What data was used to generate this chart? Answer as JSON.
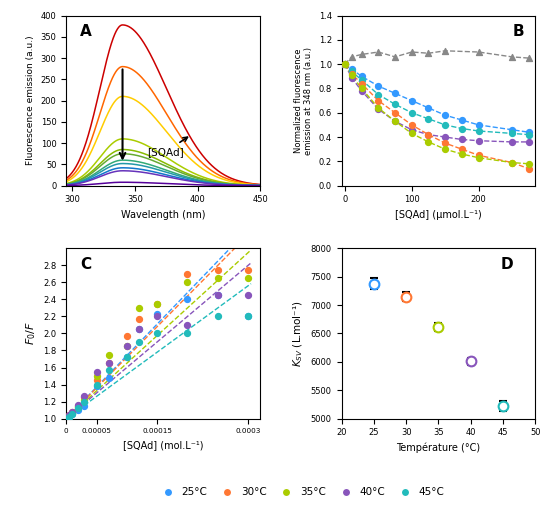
{
  "panel_A": {
    "label": "A",
    "xlabel": "Wavelength (nm)",
    "ylabel": "Fluorescence emission (a.u.)",
    "xlim": [
      295,
      450
    ],
    "ylim": [
      0,
      400
    ],
    "yticks": [
      0,
      50,
      100,
      150,
      200,
      250,
      300,
      350,
      400
    ],
    "xticks": [
      300,
      350,
      400,
      450
    ],
    "spectra_colors": [
      "#cc0000",
      "#ff6600",
      "#ffcc00",
      "#aacc00",
      "#88bb00",
      "#66aa33",
      "#33aa77",
      "#2299aa",
      "#1177cc",
      "#6633bb",
      "#550099"
    ],
    "peak_wavelength": 340,
    "peak_values": [
      378,
      280,
      210,
      110,
      85,
      75,
      60,
      52,
      42,
      35,
      8
    ],
    "annotation_text": "[SQAd]"
  },
  "panel_B": {
    "label": "B",
    "xlabel": "[SQAd] (μmol.L⁻¹)",
    "ylabel": "Normalized fluorescence\nemission at 348 nm (a.u.)",
    "xlim": [
      -5,
      285
    ],
    "ylim": [
      0,
      1.4
    ],
    "yticks": [
      0,
      0.2,
      0.4,
      0.6,
      0.8,
      1.0,
      1.2,
      1.4
    ],
    "xticks": [
      0,
      100,
      200
    ],
    "series": {
      "25C": {
        "color": "#3399ff",
        "x": [
          0,
          10,
          25,
          50,
          75,
          100,
          125,
          150,
          175,
          200,
          250,
          275
        ],
        "y": [
          1.0,
          0.96,
          0.9,
          0.82,
          0.76,
          0.7,
          0.64,
          0.58,
          0.54,
          0.5,
          0.46,
          0.44
        ]
      },
      "30C": {
        "color": "#ff7733",
        "x": [
          0,
          10,
          25,
          50,
          75,
          100,
          125,
          150,
          175,
          200,
          250,
          275
        ],
        "y": [
          1.0,
          0.92,
          0.84,
          0.7,
          0.6,
          0.5,
          0.42,
          0.35,
          0.3,
          0.25,
          0.19,
          0.14
        ]
      },
      "35C": {
        "color": "#aacc00",
        "x": [
          0,
          10,
          25,
          50,
          75,
          100,
          125,
          150,
          175,
          200,
          250,
          275
        ],
        "y": [
          1.0,
          0.91,
          0.8,
          0.64,
          0.53,
          0.43,
          0.36,
          0.3,
          0.26,
          0.23,
          0.19,
          0.18
        ]
      },
      "40C": {
        "color": "#8855bb",
        "x": [
          0,
          10,
          25,
          50,
          75,
          100,
          125,
          150,
          175,
          200,
          250,
          275
        ],
        "y": [
          1.0,
          0.89,
          0.78,
          0.63,
          0.53,
          0.46,
          0.42,
          0.4,
          0.38,
          0.37,
          0.36,
          0.36
        ]
      },
      "45C": {
        "color": "#22bbbb",
        "x": [
          0,
          10,
          25,
          50,
          75,
          100,
          125,
          150,
          175,
          200,
          250,
          275
        ],
        "y": [
          1.0,
          0.94,
          0.87,
          0.75,
          0.67,
          0.6,
          0.55,
          0.5,
          0.47,
          0.45,
          0.43,
          0.42
        ]
      },
      "control": {
        "color": "#888888",
        "x": [
          0,
          10,
          25,
          50,
          75,
          100,
          125,
          150,
          200,
          250,
          275
        ],
        "y": [
          1.0,
          1.06,
          1.08,
          1.1,
          1.06,
          1.1,
          1.09,
          1.11,
          1.1,
          1.06,
          1.05
        ]
      }
    }
  },
  "panel_C": {
    "label": "C",
    "xlabel": "[SQAd] (mol.L⁻¹)",
    "ylabel": "$F_0/F$",
    "xlim": [
      0,
      0.00032
    ],
    "ylim": [
      1.0,
      3.0
    ],
    "yticks": [
      1.0,
      1.2,
      1.4,
      1.6,
      1.8,
      2.0,
      2.2,
      2.4,
      2.6,
      2.8
    ],
    "xtick_vals": [
      0,
      5e-05,
      0.00015,
      0.0003
    ],
    "xtick_labels": [
      "0",
      "0.00005",
      "0.00015",
      "0.0003"
    ],
    "series": {
      "25C": {
        "color": "#3399ff",
        "Ksv": 7400,
        "scatter_x": [
          0,
          5e-06,
          1e-05,
          2e-05,
          3e-05,
          5e-05,
          7e-05,
          0.0001,
          0.00012,
          0.00015,
          0.0002,
          0.00025,
          0.0003
        ],
        "scatter_y": [
          1.0,
          1.02,
          1.05,
          1.1,
          1.15,
          1.38,
          1.48,
          1.72,
          2.05,
          2.23,
          2.4,
          2.45,
          2.2
        ]
      },
      "30C": {
        "color": "#ff7733",
        "Ksv": 7200,
        "scatter_x": [
          0,
          5e-06,
          1e-05,
          2e-05,
          3e-05,
          5e-05,
          7e-05,
          0.0001,
          0.00012,
          0.00015,
          0.0002,
          0.00025,
          0.0003
        ],
        "scatter_y": [
          1.0,
          1.04,
          1.08,
          1.15,
          1.25,
          1.45,
          1.65,
          1.97,
          2.17,
          2.35,
          2.7,
          2.75,
          2.75
        ]
      },
      "35C": {
        "color": "#aacc00",
        "Ksv": 6500,
        "scatter_x": [
          0,
          5e-06,
          1e-05,
          2e-05,
          3e-05,
          5e-05,
          7e-05,
          0.0001,
          0.00012,
          0.00015,
          0.0002,
          0.00025,
          0.0003
        ],
        "scatter_y": [
          1.0,
          1.03,
          1.07,
          1.14,
          1.22,
          1.5,
          1.75,
          1.85,
          2.3,
          2.35,
          2.6,
          2.65,
          2.65
        ]
      },
      "40C": {
        "color": "#8855bb",
        "Ksv": 6000,
        "scatter_x": [
          0,
          5e-06,
          1e-05,
          2e-05,
          3e-05,
          5e-05,
          7e-05,
          0.0001,
          0.00012,
          0.00015,
          0.0002,
          0.00025,
          0.0003
        ],
        "scatter_y": [
          1.0,
          1.04,
          1.08,
          1.16,
          1.26,
          1.55,
          1.65,
          1.85,
          2.05,
          2.2,
          2.1,
          2.45,
          2.45
        ]
      },
      "45C": {
        "color": "#22bbbb",
        "Ksv": 5200,
        "scatter_x": [
          0,
          5e-06,
          1e-05,
          2e-05,
          3e-05,
          5e-05,
          7e-05,
          0.0001,
          0.00012,
          0.00015,
          0.0002,
          0.00025,
          0.0003
        ],
        "scatter_y": [
          1.0,
          1.02,
          1.05,
          1.12,
          1.2,
          1.4,
          1.57,
          1.72,
          1.9,
          2.0,
          2.0,
          2.2,
          2.2
        ]
      }
    }
  },
  "panel_D": {
    "label": "D",
    "xlabel": "Température (°C)",
    "ylabel": "$K_{SV}$ (L.mol⁻¹)",
    "xlim": [
      20,
      50
    ],
    "ylim": [
      5000,
      8000
    ],
    "yticks": [
      5000,
      5500,
      6000,
      6500,
      7000,
      7500,
      8000
    ],
    "xticks": [
      20,
      25,
      30,
      35,
      40,
      45,
      50
    ],
    "points": [
      {
        "temp": 25,
        "Ksv": 7380,
        "err": 100,
        "color": "#3399ff"
      },
      {
        "temp": 30,
        "Ksv": 7150,
        "err": 80,
        "color": "#ff7733"
      },
      {
        "temp": 35,
        "Ksv": 6620,
        "err": 70,
        "color": "#aacc00"
      },
      {
        "temp": 40,
        "Ksv": 6010,
        "err": 60,
        "color": "#8855bb"
      },
      {
        "temp": 45,
        "Ksv": 5220,
        "err": 90,
        "color": "#22bbbb"
      }
    ]
  },
  "legend": {
    "entries": [
      "25°C",
      "30°C",
      "35°C",
      "40°C",
      "45°C"
    ],
    "colors": [
      "#3399ff",
      "#ff7733",
      "#aacc00",
      "#8855bb",
      "#22bbbb"
    ]
  }
}
